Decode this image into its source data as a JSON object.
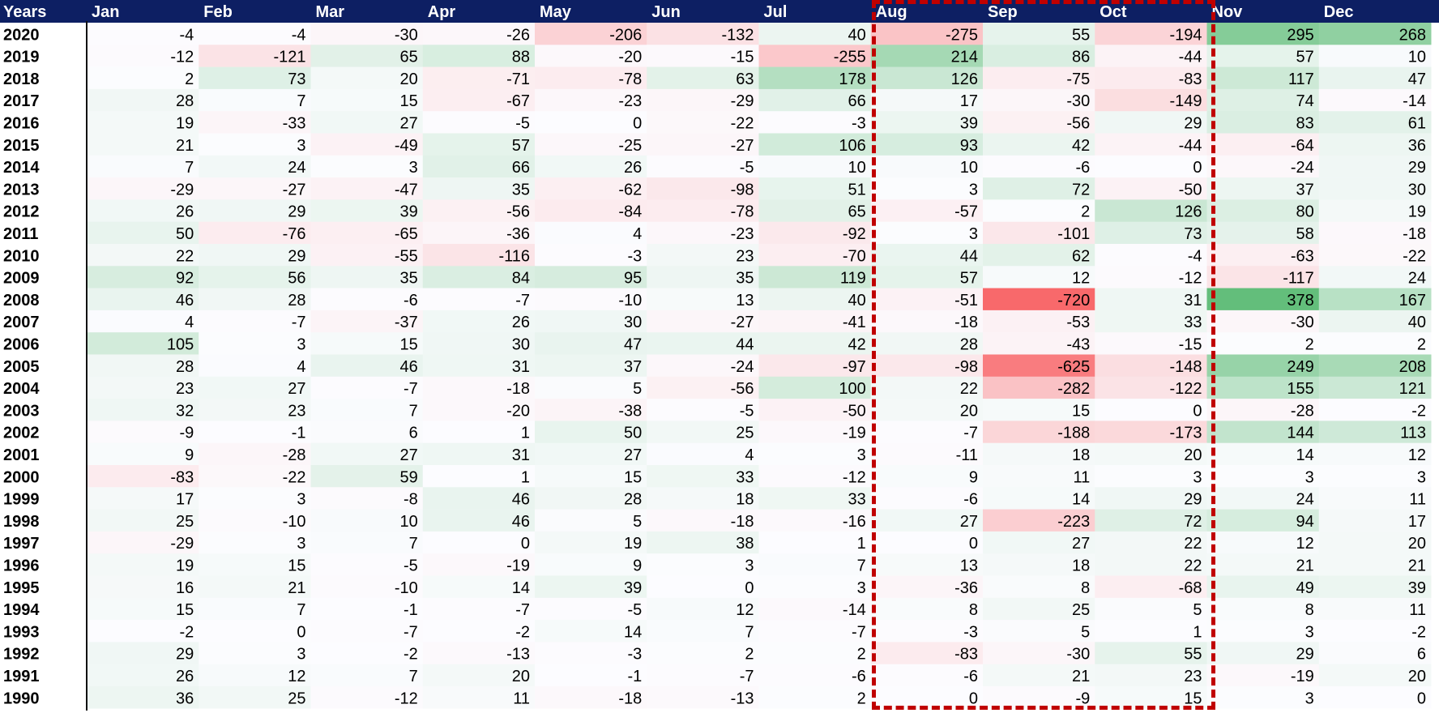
{
  "chart_data": {
    "type": "heatmap",
    "row_header": "Years",
    "columns": [
      "Jan",
      "Feb",
      "Mar",
      "Apr",
      "May",
      "Jun",
      "Jul",
      "Aug",
      "Sep",
      "Oct",
      "Nov",
      "Dec"
    ],
    "rows": [
      {
        "year": "2020",
        "values": [
          -4,
          -4,
          -30,
          -26,
          -206,
          -132,
          40,
          -275,
          55,
          -194,
          295,
          268
        ]
      },
      {
        "year": "2019",
        "values": [
          -12,
          -121,
          65,
          88,
          -20,
          -15,
          -255,
          214,
          86,
          -44,
          57,
          10
        ]
      },
      {
        "year": "2018",
        "values": [
          2,
          73,
          20,
          -71,
          -78,
          63,
          178,
          126,
          -75,
          -83,
          117,
          47
        ]
      },
      {
        "year": "2017",
        "values": [
          28,
          7,
          15,
          -67,
          -23,
          -29,
          66,
          17,
          -30,
          -149,
          74,
          -14
        ]
      },
      {
        "year": "2016",
        "values": [
          19,
          -33,
          27,
          -5,
          0,
          -22,
          -3,
          39,
          -56,
          29,
          83,
          61
        ]
      },
      {
        "year": "2015",
        "values": [
          21,
          3,
          -49,
          57,
          -25,
          -27,
          106,
          93,
          42,
          -44,
          -64,
          36
        ]
      },
      {
        "year": "2014",
        "values": [
          7,
          24,
          3,
          66,
          26,
          -5,
          10,
          10,
          -6,
          0,
          -24,
          29
        ]
      },
      {
        "year": "2013",
        "values": [
          -29,
          -27,
          -47,
          35,
          -62,
          -98,
          51,
          3,
          72,
          -50,
          37,
          30
        ]
      },
      {
        "year": "2012",
        "values": [
          26,
          29,
          39,
          -56,
          -84,
          -78,
          65,
          -57,
          2,
          126,
          80,
          19
        ]
      },
      {
        "year": "2011",
        "values": [
          50,
          -76,
          -65,
          -36,
          4,
          -23,
          -92,
          3,
          -101,
          73,
          58,
          -18
        ]
      },
      {
        "year": "2010",
        "values": [
          22,
          29,
          -55,
          -116,
          -3,
          23,
          -70,
          44,
          62,
          -4,
          -63,
          -22
        ]
      },
      {
        "year": "2009",
        "values": [
          92,
          56,
          35,
          84,
          95,
          35,
          119,
          57,
          12,
          -12,
          -117,
          24
        ]
      },
      {
        "year": "2008",
        "values": [
          46,
          28,
          -6,
          -7,
          -10,
          13,
          40,
          -51,
          -720,
          31,
          378,
          167
        ]
      },
      {
        "year": "2007",
        "values": [
          4,
          -7,
          -37,
          26,
          30,
          -27,
          -41,
          -18,
          -53,
          33,
          -30,
          40
        ]
      },
      {
        "year": "2006",
        "values": [
          105,
          3,
          15,
          30,
          47,
          44,
          42,
          28,
          -43,
          -15,
          2,
          2
        ]
      },
      {
        "year": "2005",
        "values": [
          28,
          4,
          46,
          31,
          37,
          -24,
          -97,
          -98,
          -625,
          -148,
          249,
          208
        ]
      },
      {
        "year": "2004",
        "values": [
          23,
          27,
          -7,
          -18,
          5,
          -56,
          100,
          22,
          -282,
          -122,
          155,
          121
        ]
      },
      {
        "year": "2003",
        "values": [
          32,
          23,
          7,
          -20,
          -38,
          -5,
          -50,
          20,
          15,
          0,
          -28,
          -2
        ]
      },
      {
        "year": "2002",
        "values": [
          -9,
          -1,
          6,
          1,
          50,
          25,
          -19,
          -7,
          -188,
          -173,
          144,
          113
        ]
      },
      {
        "year": "2001",
        "values": [
          9,
          -28,
          27,
          31,
          27,
          4,
          3,
          -11,
          18,
          20,
          14,
          12
        ]
      },
      {
        "year": "2000",
        "values": [
          -83,
          -22,
          59,
          1,
          15,
          33,
          -12,
          9,
          11,
          3,
          3,
          3
        ]
      },
      {
        "year": "1999",
        "values": [
          17,
          3,
          -8,
          46,
          28,
          18,
          33,
          -6,
          14,
          29,
          24,
          11
        ]
      },
      {
        "year": "1998",
        "values": [
          25,
          -10,
          10,
          46,
          5,
          -18,
          -16,
          27,
          -223,
          72,
          94,
          17
        ]
      },
      {
        "year": "1997",
        "values": [
          -29,
          3,
          7,
          0,
          19,
          38,
          1,
          0,
          27,
          22,
          12,
          20
        ]
      },
      {
        "year": "1996",
        "values": [
          19,
          15,
          -5,
          -19,
          9,
          3,
          7,
          13,
          18,
          22,
          21,
          21
        ]
      },
      {
        "year": "1995",
        "values": [
          16,
          21,
          -10,
          14,
          39,
          0,
          3,
          -36,
          8,
          -68,
          49,
          39
        ]
      },
      {
        "year": "1994",
        "values": [
          15,
          7,
          -1,
          -7,
          -5,
          12,
          -14,
          8,
          25,
          5,
          8,
          11
        ]
      },
      {
        "year": "1993",
        "values": [
          -2,
          0,
          -7,
          -2,
          14,
          7,
          -7,
          -3,
          5,
          1,
          3,
          -2
        ]
      },
      {
        "year": "1992",
        "values": [
          29,
          3,
          -2,
          -13,
          -3,
          2,
          2,
          -83,
          -30,
          55,
          29,
          6
        ]
      },
      {
        "year": "1991",
        "values": [
          26,
          12,
          7,
          20,
          -1,
          -7,
          -6,
          -6,
          21,
          23,
          -19,
          20
        ]
      },
      {
        "year": "1990",
        "values": [
          36,
          25,
          -12,
          11,
          -18,
          -13,
          2,
          0,
          -9,
          15,
          3,
          0
        ]
      }
    ],
    "highlighted_columns": [
      "Aug",
      "Sep",
      "Oct"
    ],
    "color_scale": {
      "negative": "#f8696b",
      "neutral": "#fcfcff",
      "positive": "#63be7b"
    }
  },
  "colors": {
    "header_bg": "#0d1f63",
    "header_text": "#ffffff",
    "highlight_border": "#c00000"
  }
}
